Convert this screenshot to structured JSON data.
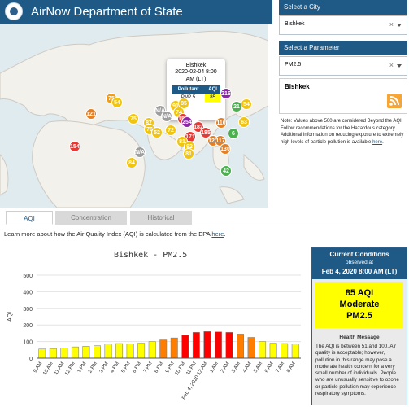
{
  "header": {
    "title": "AirNow Department of State"
  },
  "map": {
    "popup": {
      "city": "Bishkek",
      "time_line1": "2020-02-04 8:00",
      "time_line2": "AM (LT)",
      "col_pollutant": "Pollutant",
      "col_aqi": "AQI",
      "pollutant": "PM2.5",
      "aqi": "85"
    },
    "markers": [
      {
        "label": "75",
        "color": "#f39c12"
      },
      {
        "label": "54",
        "color": "#f1c40f"
      },
      {
        "label": "121",
        "color": "#e67e22"
      },
      {
        "label": "75",
        "color": "#f1c40f"
      },
      {
        "label": "N/A",
        "color": "#9e9e9e"
      },
      {
        "label": "87",
        "color": "#f1c40f"
      },
      {
        "label": "76",
        "color": "#f1c40f"
      },
      {
        "label": "52",
        "color": "#f1c40f"
      },
      {
        "label": "72",
        "color": "#f1c40f"
      },
      {
        "label": "91",
        "color": "#f1c40f"
      },
      {
        "label": "85",
        "color": "#f1c40f"
      },
      {
        "label": "74",
        "color": "#f1c40f"
      },
      {
        "label": "156",
        "color": "#e53935"
      },
      {
        "label": "254",
        "color": "#8e24aa"
      },
      {
        "label": "182",
        "color": "#e53935"
      },
      {
        "label": "171",
        "color": "#e53935"
      },
      {
        "label": "81",
        "color": "#f1c40f"
      },
      {
        "label": "92",
        "color": "#f1c40f"
      },
      {
        "label": "81",
        "color": "#f1c40f"
      },
      {
        "label": "185",
        "color": "#e53935"
      },
      {
        "label": "125",
        "color": "#e67e22"
      },
      {
        "label": "117",
        "color": "#e67e22"
      },
      {
        "label": "130",
        "color": "#e67e22"
      },
      {
        "label": "110",
        "color": "#e67e22"
      },
      {
        "label": "216",
        "color": "#8e24aa"
      },
      {
        "label": "21",
        "color": "#4caf50"
      },
      {
        "label": "54",
        "color": "#f1c40f"
      },
      {
        "label": "63",
        "color": "#f1c40f"
      },
      {
        "label": "6",
        "color": "#4caf50"
      },
      {
        "label": "42",
        "color": "#4caf50"
      },
      {
        "label": "154",
        "color": "#e53935"
      },
      {
        "label": "N/A",
        "color": "#9e9e9e"
      },
      {
        "label": "84",
        "color": "#f1c40f"
      },
      {
        "label": "N/A",
        "color": "#9e9e9e"
      }
    ]
  },
  "panel": {
    "city_header": "Select a City",
    "city_value": "Bishkek",
    "param_header": "Select a Parameter",
    "param_value": "PM2.5",
    "info_city": "Bishkek",
    "note": "Note: Values above 500 are considered Beyond the AQI. Follow recommendations for the Hazardous category. Additional information on reducing exposure to extremely high levels of particle pollution is available ",
    "note_link": "here",
    "clear_symbol": "×"
  },
  "tabs": [
    {
      "label": "AQI"
    },
    {
      "label": "Concentration"
    },
    {
      "label": "Historical"
    }
  ],
  "learn": {
    "text": "Learn more about how the Air Quality Index (AQI) is calculated from the EPA ",
    "link": "here",
    "end": "."
  },
  "chart_data": {
    "type": "bar",
    "title": "Bishkek - PM2.5",
    "xlabel": "",
    "ylabel": "AQI",
    "ylim": [
      0,
      500
    ],
    "yticks": [
      0,
      100,
      200,
      300,
      400,
      500
    ],
    "categories": [
      "9 AM",
      "10 AM",
      "11 AM",
      "12 PM",
      "1 PM",
      "2 PM",
      "3 PM",
      "4 PM",
      "5 PM",
      "6 PM",
      "7 PM",
      "8 PM",
      "9 PM",
      "10 PM",
      "11 PM",
      "Feb 4, 2020 12 AM",
      "1 AM",
      "2 AM",
      "3 AM",
      "4 AM",
      "5 AM",
      "6 AM",
      "7 AM",
      "8 AM"
    ],
    "values": [
      55,
      58,
      60,
      68,
      72,
      75,
      85,
      88,
      87,
      90,
      100,
      110,
      122,
      138,
      155,
      160,
      158,
      155,
      145,
      125,
      100,
      90,
      88,
      85
    ],
    "colors": [
      "#ffff00",
      "#ffff00",
      "#ffff00",
      "#ffff00",
      "#ffff00",
      "#ffff00",
      "#ffff00",
      "#ffff00",
      "#ffff00",
      "#ffff00",
      "#ffff00",
      "#ff7e00",
      "#ff7e00",
      "#ff0000",
      "#ff0000",
      "#ff0000",
      "#ff0000",
      "#ff0000",
      "#ff7e00",
      "#ff7e00",
      "#ffff00",
      "#ffff00",
      "#ffff00",
      "#ffff00"
    ]
  },
  "current": {
    "title": "Current Conditions",
    "observed": "observed at",
    "time": "Feb 4, 2020 8:00 AM (LT)",
    "aqi_line": "85 AQI",
    "category": "Moderate",
    "pollutant": "PM2.5",
    "hm_title": "Health Message",
    "hm_text": "The AQI is between 51 and 100. Air quality is acceptable; however, pollution in this range may pose a moderate health concern for a very small number of individuals. People who are unusually sensitive to ozone or particle pollution may experience respiratory symptoms.",
    "aqi_color": "#ffff00",
    "accent": "#1f5a86"
  }
}
